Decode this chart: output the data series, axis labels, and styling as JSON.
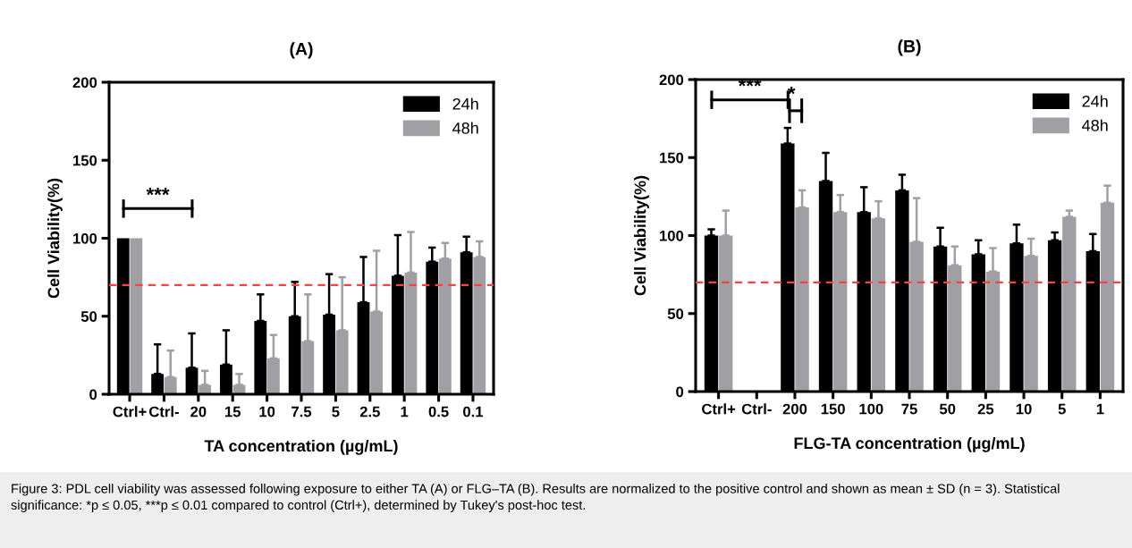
{
  "chart_data": [
    {
      "type": "bar",
      "title": "(A)",
      "xlabel": "TA concentration (µg/mL)",
      "ylabel": "Cell Viability(%)",
      "categories": [
        "Ctrl+",
        "Ctrl-",
        "20",
        "15",
        "10",
        "7.5",
        "5",
        "2.5",
        "1",
        "0.5",
        "0.1"
      ],
      "series": [
        {
          "name": "24h",
          "color": "#000000",
          "values": [
            100,
            13,
            17,
            19,
            47,
            50,
            51,
            59,
            76,
            85,
            91
          ],
          "errors": [
            null,
            [
              13,
              32
            ],
            [
              17,
              39
            ],
            [
              19,
              41
            ],
            [
              47,
              64
            ],
            [
              50,
              72
            ],
            [
              51,
              77
            ],
            [
              59,
              88
            ],
            [
              76,
              102
            ],
            [
              85,
              94
            ],
            [
              91,
              101
            ]
          ]
        },
        {
          "name": "48h",
          "color": "#a0a0a4",
          "values": [
            100,
            11,
            6,
            6,
            23,
            34,
            41,
            53,
            78,
            87,
            88
          ],
          "errors": [
            null,
            [
              11,
              28
            ],
            [
              6,
              15
            ],
            [
              6,
              13
            ],
            [
              23,
              38
            ],
            [
              34,
              64
            ],
            [
              41,
              75
            ],
            [
              53,
              92
            ],
            [
              78,
              104
            ],
            [
              87,
              97
            ],
            [
              88,
              98
            ]
          ]
        }
      ],
      "ylim": [
        0,
        200
      ],
      "yticks": [
        0,
        50,
        100,
        150,
        200
      ],
      "legend": "top right",
      "grid": false,
      "ref_lines": [
        {
          "axis": "y",
          "value": 70,
          "color": "#ff4040",
          "line_style": "dashed"
        }
      ],
      "annotations": [
        "***"
      ]
    },
    {
      "type": "bar",
      "title": "(B)",
      "xlabel": "FLG-TA concentration (µg/mL)",
      "ylabel": "Cell Viability(%)",
      "categories": [
        "Ctrl+",
        "Ctrl-",
        "200",
        "150",
        "100",
        "75",
        "50",
        "25",
        "10",
        "5",
        "1"
      ],
      "series": [
        {
          "name": "24h",
          "color": "#000000",
          "values": [
            100,
            0,
            159,
            135,
            115,
            129,
            93,
            88,
            95,
            97,
            90
          ],
          "errors": [
            [
              100,
              104
            ],
            null,
            [
              159,
              169
            ],
            [
              135,
              153
            ],
            [
              115,
              131
            ],
            [
              129,
              139
            ],
            [
              93,
              105
            ],
            [
              88,
              97
            ],
            [
              95,
              107
            ],
            [
              97,
              102
            ],
            [
              90,
              101
            ]
          ]
        },
        {
          "name": "48h",
          "color": "#a0a0a4",
          "values": [
            100,
            0,
            118,
            115,
            111,
            96,
            81,
            77,
            87,
            112,
            121
          ],
          "errors": [
            [
              100,
              116
            ],
            null,
            [
              118,
              129
            ],
            [
              115,
              126
            ],
            [
              111,
              122
            ],
            [
              96,
              124
            ],
            [
              81,
              93
            ],
            [
              77,
              92
            ],
            [
              87,
              98
            ],
            [
              112,
              116
            ],
            [
              121,
              132
            ]
          ]
        }
      ],
      "ylim": [
        0,
        200
      ],
      "yticks": [
        0,
        50,
        100,
        150,
        200
      ],
      "legend": "top right",
      "grid": false,
      "ref_lines": [
        {
          "axis": "y",
          "value": 70,
          "color": "#ff4040",
          "line_style": "dashed"
        }
      ],
      "annotations": [
        "***",
        "*"
      ]
    },
    {
      "type": "other",
      "annotations": [
        "Figure 3: PDL cell viability was assessed following exposure to either TA (A) or FLG–TA (B). Results are normalized to the positive control and shown as mean ± SD (n = 3). Statistical significance: *p ≤ 0.05, ***p ≤ 0.01 compared to control (Ctrl+), determined by Tukey's post-hoc test."
      ]
    }
  ]
}
